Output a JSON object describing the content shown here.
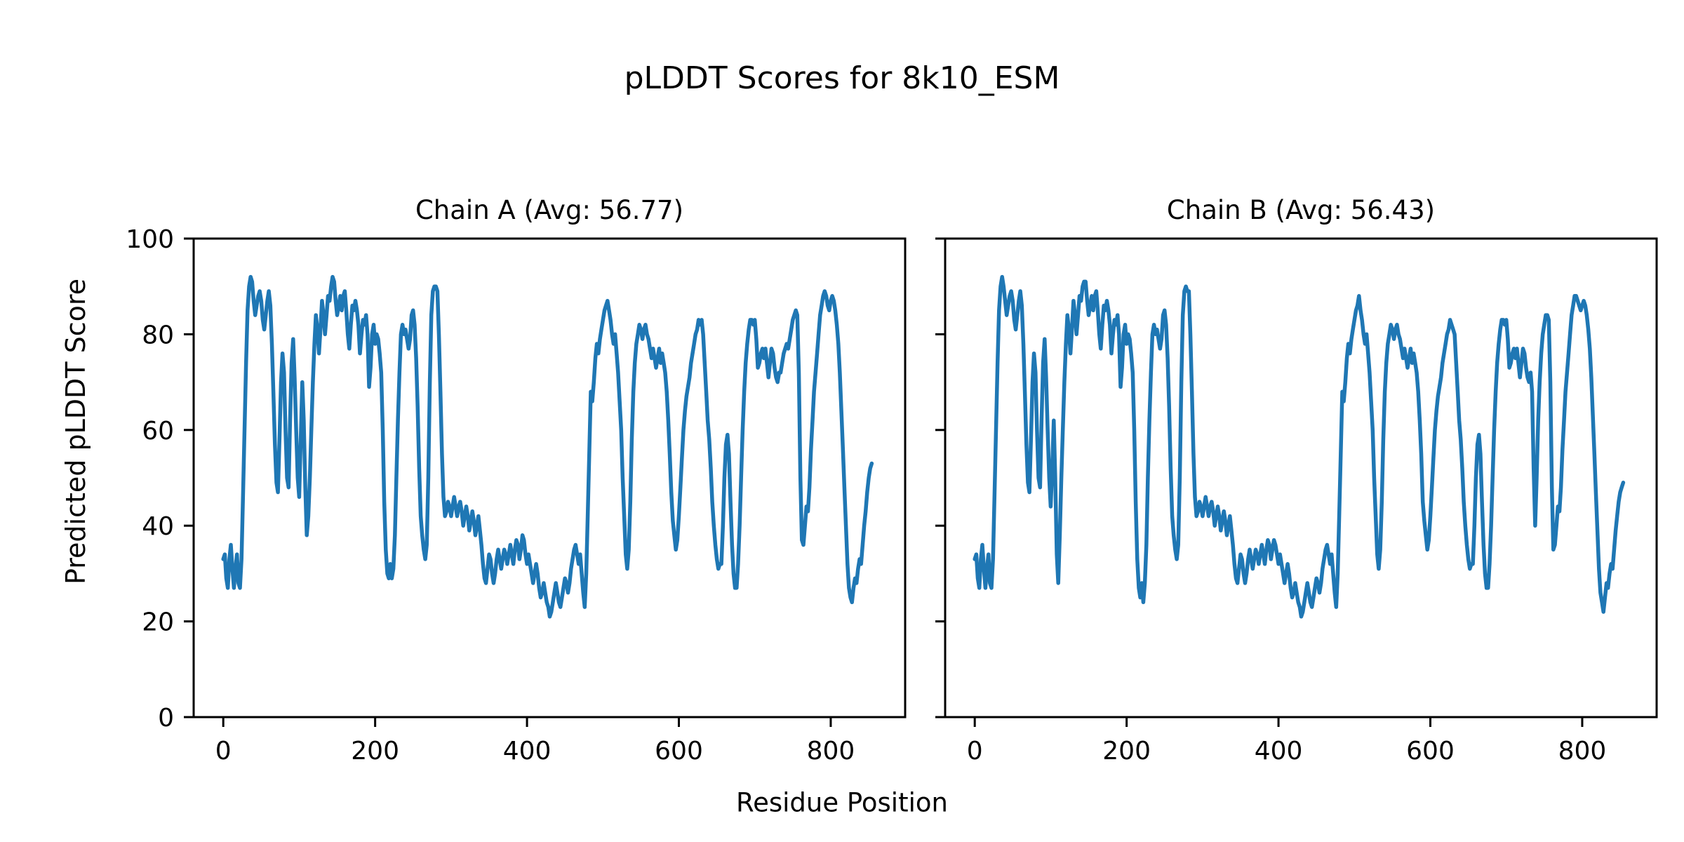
{
  "figure": {
    "suptitle": "pLDDT Scores for 8k10_ESM",
    "xlabel": "Residue Position",
    "ylabel": "Predicted pLDDT Score",
    "background_color": "#ffffff",
    "text_color": "#000000",
    "line_color": "#1f77b4",
    "spine_color": "#000000"
  },
  "chart_data": [
    {
      "type": "line",
      "title": "Chain A (Avg: 56.77)",
      "chain": "A",
      "average_plddt": 56.77,
      "xlabel": "Residue Position",
      "ylabel": "Predicted pLDDT Score",
      "xlim": [
        -39,
        898
      ],
      "ylim": [
        0,
        100
      ],
      "xticks": [
        0,
        200,
        400,
        600,
        800
      ],
      "yticks": [
        0,
        20,
        40,
        60,
        80,
        100
      ],
      "y_tick_labels_visible": true,
      "grid": false,
      "legend_position": "none",
      "x_start": 0,
      "x_step": 2,
      "values": [
        33,
        34,
        29,
        27,
        33,
        36,
        31,
        27,
        31,
        34,
        28,
        27,
        33,
        46,
        60,
        74,
        85,
        90,
        92,
        91,
        87,
        84,
        86,
        88,
        89,
        87,
        83,
        81,
        84,
        87,
        89,
        86,
        78,
        68,
        57,
        49,
        47,
        58,
        70,
        76,
        72,
        60,
        50,
        48,
        62,
        74,
        79,
        71,
        60,
        50,
        46,
        58,
        70,
        62,
        48,
        38,
        42,
        50,
        60,
        70,
        78,
        84,
        81,
        76,
        81,
        87,
        84,
        80,
        84,
        88,
        87,
        90,
        92,
        91,
        87,
        84,
        86,
        88,
        85,
        88,
        89,
        85,
        80,
        77,
        82,
        86,
        85,
        87,
        85,
        82,
        76,
        80,
        83,
        82,
        84,
        80,
        69,
        73,
        80,
        82,
        78,
        80,
        79,
        76,
        72,
        60,
        45,
        35,
        30,
        29,
        32,
        29,
        31,
        38,
        50,
        62,
        72,
        80,
        82,
        80,
        81,
        79,
        77,
        79,
        84,
        85,
        82,
        75,
        65,
        52,
        42,
        38,
        35,
        33,
        36,
        50,
        70,
        84,
        89,
        90,
        90,
        89,
        80,
        68,
        55,
        46,
        42,
        43,
        45,
        44,
        42,
        44,
        46,
        44,
        42,
        44,
        45,
        43,
        40,
        42,
        44,
        42,
        39,
        41,
        43,
        41,
        38,
        40,
        42,
        39,
        36,
        32,
        29,
        28,
        31,
        34,
        33,
        30,
        28,
        30,
        33,
        35,
        33,
        31,
        33,
        35,
        34,
        32,
        34,
        36,
        34,
        32,
        35,
        37,
        36,
        33,
        35,
        38,
        37,
        34,
        32,
        34,
        32,
        30,
        28,
        30,
        32,
        30,
        27,
        25,
        26,
        28,
        26,
        24,
        23,
        21,
        22,
        24,
        26,
        28,
        26,
        24,
        23,
        25,
        27,
        29,
        28,
        26,
        28,
        31,
        33,
        35,
        36,
        34,
        32,
        34,
        30,
        26,
        23,
        30,
        42,
        55,
        68,
        66,
        70,
        75,
        78,
        76,
        79,
        81,
        83,
        85,
        86,
        87,
        85,
        83,
        80,
        78,
        80,
        76,
        72,
        66,
        60,
        50,
        42,
        34,
        31,
        35,
        45,
        58,
        68,
        74,
        78,
        80,
        82,
        81,
        79,
        81,
        82,
        80,
        79,
        77,
        75,
        77,
        75,
        73,
        75,
        77,
        74,
        76,
        74,
        72,
        68,
        62,
        55,
        47,
        41,
        38,
        35,
        37,
        42,
        48,
        54,
        60,
        64,
        67,
        69,
        71,
        74,
        76,
        78,
        80,
        81,
        83,
        82,
        83,
        80,
        74,
        68,
        62,
        58,
        52,
        45,
        40,
        36,
        33,
        31,
        32,
        32,
        40,
        50,
        57,
        59,
        55,
        45,
        36,
        30,
        27,
        27,
        32,
        40,
        50,
        60,
        68,
        74,
        78,
        81,
        83,
        83,
        82,
        83,
        79,
        73,
        74,
        76,
        77,
        75,
        77,
        74,
        71,
        74,
        77,
        76,
        73,
        71,
        70,
        72,
        72,
        74,
        76,
        77,
        78,
        77,
        79,
        81,
        83,
        84,
        85,
        84,
        72,
        50,
        37,
        36,
        40,
        44,
        43,
        48,
        56,
        62,
        68,
        72,
        76,
        80,
        84,
        86,
        88,
        89,
        88,
        86,
        85,
        87,
        88,
        87,
        85,
        82,
        78,
        72,
        64,
        56,
        48,
        40,
        32,
        27,
        25,
        24,
        27,
        29,
        28,
        31,
        33,
        32,
        36,
        40,
        43,
        47,
        50,
        52,
        53
      ]
    },
    {
      "type": "line",
      "title": "Chain B (Avg: 56.43)",
      "chain": "B",
      "average_plddt": 56.43,
      "xlabel": "Residue Position",
      "ylabel": "Predicted pLDDT Score",
      "xlim": [
        -39,
        898
      ],
      "ylim": [
        0,
        100
      ],
      "xticks": [
        0,
        200,
        400,
        600,
        800
      ],
      "yticks": [
        0,
        20,
        40,
        60,
        80,
        100
      ],
      "y_tick_labels_visible": false,
      "grid": false,
      "legend_position": "none",
      "x_start": 0,
      "x_step": 2,
      "values": [
        33,
        34,
        29,
        27,
        33,
        36,
        31,
        27,
        31,
        34,
        28,
        27,
        33,
        46,
        60,
        74,
        85,
        90,
        92,
        90,
        87,
        84,
        86,
        88,
        89,
        87,
        83,
        81,
        84,
        87,
        89,
        86,
        78,
        68,
        57,
        49,
        47,
        58,
        70,
        76,
        72,
        60,
        50,
        48,
        62,
        74,
        79,
        71,
        60,
        50,
        44,
        52,
        62,
        50,
        34,
        28,
        38,
        50,
        60,
        70,
        78,
        84,
        81,
        76,
        81,
        87,
        84,
        80,
        84,
        88,
        87,
        90,
        91,
        91,
        87,
        84,
        86,
        88,
        85,
        88,
        89,
        85,
        80,
        77,
        82,
        86,
        85,
        87,
        85,
        82,
        76,
        80,
        83,
        82,
        84,
        80,
        69,
        73,
        80,
        82,
        78,
        80,
        79,
        76,
        72,
        60,
        45,
        33,
        27,
        25,
        28,
        24,
        28,
        36,
        50,
        62,
        72,
        80,
        82,
        80,
        81,
        79,
        77,
        79,
        84,
        85,
        82,
        75,
        65,
        52,
        42,
        38,
        35,
        33,
        36,
        50,
        70,
        84,
        89,
        90,
        89,
        89,
        80,
        68,
        55,
        46,
        42,
        43,
        45,
        44,
        42,
        44,
        46,
        44,
        42,
        44,
        45,
        43,
        40,
        42,
        44,
        42,
        39,
        41,
        43,
        41,
        38,
        40,
        42,
        39,
        36,
        32,
        29,
        28,
        31,
        34,
        33,
        30,
        28,
        30,
        33,
        35,
        33,
        31,
        33,
        35,
        34,
        32,
        34,
        36,
        34,
        32,
        35,
        37,
        36,
        33,
        35,
        37,
        36,
        34,
        32,
        34,
        32,
        30,
        28,
        30,
        32,
        30,
        27,
        25,
        26,
        28,
        26,
        24,
        23,
        21,
        22,
        24,
        26,
        28,
        26,
        24,
        23,
        25,
        27,
        29,
        28,
        26,
        28,
        31,
        33,
        35,
        36,
        34,
        32,
        34,
        30,
        26,
        23,
        30,
        42,
        55,
        68,
        66,
        70,
        75,
        78,
        76,
        79,
        81,
        83,
        85,
        86,
        88,
        85,
        83,
        80,
        78,
        80,
        76,
        72,
        66,
        60,
        50,
        42,
        34,
        31,
        35,
        45,
        58,
        68,
        74,
        78,
        80,
        82,
        81,
        79,
        81,
        82,
        80,
        79,
        77,
        75,
        77,
        75,
        73,
        75,
        77,
        74,
        76,
        74,
        72,
        68,
        62,
        55,
        45,
        41,
        38,
        35,
        37,
        42,
        48,
        54,
        60,
        64,
        67,
        69,
        71,
        74,
        76,
        78,
        80,
        81,
        83,
        82,
        81,
        80,
        74,
        68,
        62,
        58,
        52,
        45,
        40,
        36,
        33,
        31,
        32,
        32,
        40,
        50,
        57,
        59,
        55,
        45,
        36,
        30,
        27,
        27,
        32,
        40,
        50,
        60,
        68,
        74,
        78,
        81,
        83,
        83,
        82,
        83,
        79,
        73,
        74,
        76,
        77,
        75,
        77,
        74,
        71,
        74,
        77,
        76,
        73,
        71,
        70,
        72,
        68,
        52,
        40,
        50,
        62,
        70,
        76,
        80,
        82,
        84,
        84,
        83,
        70,
        48,
        35,
        36,
        40,
        44,
        43,
        48,
        56,
        62,
        68,
        72,
        76,
        80,
        84,
        86,
        88,
        88,
        87,
        86,
        85,
        86,
        87,
        86,
        84,
        81,
        77,
        71,
        63,
        55,
        47,
        39,
        31,
        26,
        24,
        22,
        25,
        28,
        27,
        30,
        32,
        31,
        35,
        39,
        42,
        45,
        47,
        48,
        49
      ]
    }
  ]
}
